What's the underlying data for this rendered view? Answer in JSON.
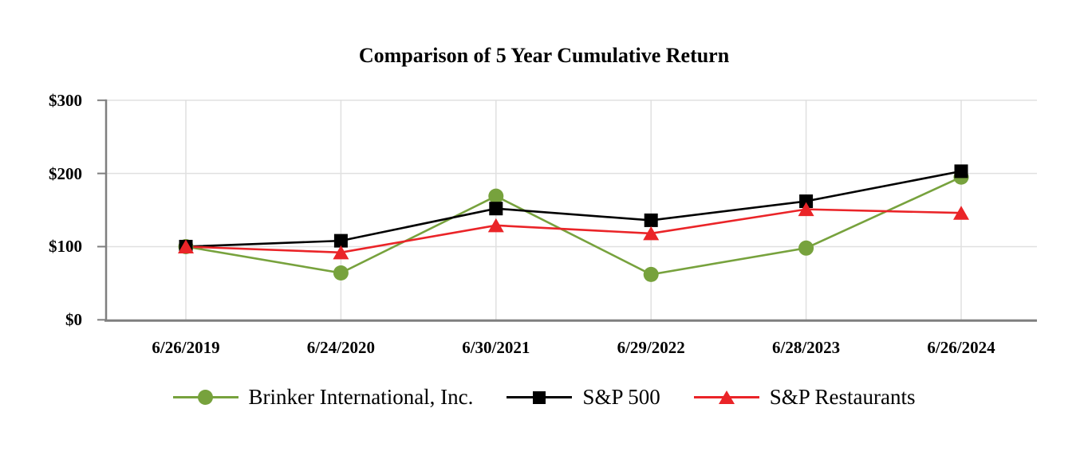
{
  "chart_data": {
    "type": "line",
    "title": "Comparison of 5 Year Cumulative Return",
    "xlabel": "",
    "ylabel": "",
    "x_labels": [
      "6/26/2019",
      "6/24/2020",
      "6/30/2021",
      "6/29/2022",
      "6/28/2023",
      "6/26/2024"
    ],
    "y_ticks": [
      {
        "label": "$300",
        "value": 300
      },
      {
        "label": "$200",
        "value": 200
      },
      {
        "label": "$100",
        "value": 100
      },
      {
        "label": "$0",
        "value": 0
      }
    ],
    "ylim": [
      0,
      300
    ],
    "grid": true,
    "legend_position": "bottom",
    "series": [
      {
        "name": "Brinker International, Inc.",
        "marker": "circle",
        "color": "#77A23D",
        "values": [
          100,
          64,
          169,
          62,
          98,
          195
        ]
      },
      {
        "name": "S&P 500",
        "marker": "square",
        "color": "#000000",
        "values": [
          100,
          108,
          152,
          136,
          162,
          203
        ]
      },
      {
        "name": "S&P Restaurants",
        "marker": "triangle",
        "color": "#EA2428",
        "values": [
          100,
          92,
          129,
          118,
          151,
          146
        ]
      }
    ],
    "colors": {
      "gridline": "#E0E0E0",
      "axis": "#7F7F7F",
      "text": "#000000",
      "background": "#FFFFFF"
    }
  }
}
